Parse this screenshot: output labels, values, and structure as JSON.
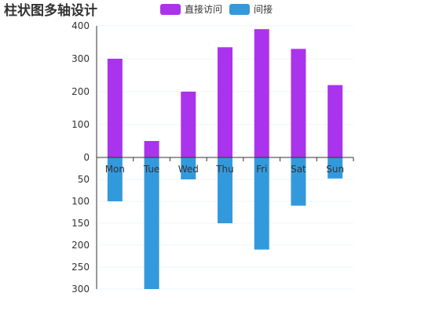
{
  "chart_data": {
    "type": "bar",
    "title": "柱状图多轴设计",
    "categories": [
      "Mon",
      "Tue",
      "Wed",
      "Thu",
      "Fri",
      "Sat",
      "Sun"
    ],
    "series": [
      {
        "name": "直接访问",
        "color": "#aa33ee",
        "axis": "top",
        "values": [
          300,
          50,
          200,
          335,
          390,
          330,
          220
        ]
      },
      {
        "name": "间接",
        "color": "#3399dd",
        "axis": "bottom",
        "values": [
          100,
          300,
          50,
          150,
          210,
          110,
          48
        ]
      }
    ],
    "yaxis_top": {
      "ylim": [
        0,
        400
      ],
      "ticks": [
        "0",
        "100",
        "200",
        "300",
        "400"
      ]
    },
    "yaxis_bottom": {
      "ylim": [
        0,
        300
      ],
      "inverse": true,
      "ticks": [
        "50",
        "100",
        "150",
        "200",
        "250",
        "300"
      ]
    },
    "legend_position": "top-center",
    "grid": true
  }
}
